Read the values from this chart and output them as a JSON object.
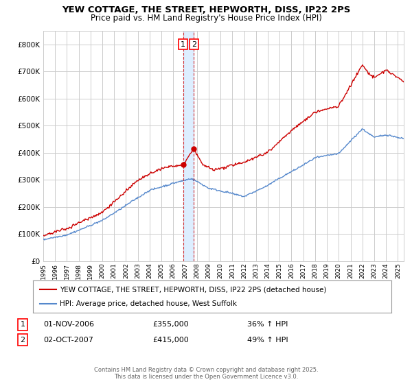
{
  "title": "YEW COTTAGE, THE STREET, HEPWORTH, DISS, IP22 2PS",
  "subtitle": "Price paid vs. HM Land Registry's House Price Index (HPI)",
  "legend_line1": "YEW COTTAGE, THE STREET, HEPWORTH, DISS, IP22 2PS (detached house)",
  "legend_line2": "HPI: Average price, detached house, West Suffolk",
  "sale1_date": "01-NOV-2006",
  "sale1_price": "£355,000",
  "sale1_hpi": "36% ↑ HPI",
  "sale2_date": "02-OCT-2007",
  "sale2_price": "£415,000",
  "sale2_hpi": "49% ↑ HPI",
  "footer": "Contains HM Land Registry data © Crown copyright and database right 2025.\nThis data is licensed under the Open Government Licence v3.0.",
  "ylim": [
    0,
    850000
  ],
  "yticks": [
    0,
    100000,
    200000,
    300000,
    400000,
    500000,
    600000,
    700000,
    800000
  ],
  "red_color": "#cc0000",
  "blue_color": "#5588cc",
  "vline_color": "#cc0000",
  "shade_color": "#ddeeff",
  "grid_color": "#cccccc",
  "background_color": "#ffffff",
  "sale1_x": 2006.83,
  "sale2_x": 2007.75,
  "sale1_y": 355000,
  "sale2_y": 415000,
  "xmin": 1995,
  "xmax": 2025.5
}
